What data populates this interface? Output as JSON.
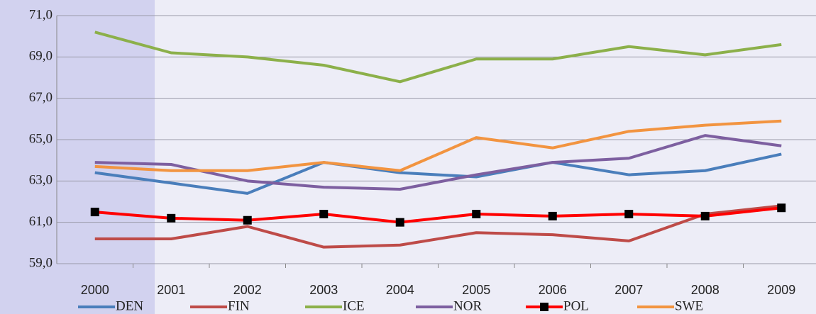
{
  "chart_data": {
    "type": "line",
    "categories": [
      "2000",
      "2001",
      "2002",
      "2003",
      "2004",
      "2005",
      "2006",
      "2007",
      "2008",
      "2009"
    ],
    "series": [
      {
        "name": "DEN",
        "color": "#4a7ebb",
        "values": [
          63.4,
          62.9,
          62.4,
          63.9,
          63.4,
          63.2,
          63.9,
          63.3,
          63.5,
          64.3
        ]
      },
      {
        "name": "FIN",
        "color": "#be4b48",
        "values": [
          60.2,
          60.2,
          60.8,
          59.8,
          59.9,
          60.5,
          60.4,
          60.1,
          61.4,
          61.8
        ]
      },
      {
        "name": "ICE",
        "color": "#8cb04a",
        "values": [
          70.2,
          69.2,
          69.0,
          68.6,
          67.8,
          68.9,
          68.9,
          69.5,
          69.1,
          69.6
        ]
      },
      {
        "name": "NOR",
        "color": "#7d5fa0",
        "values": [
          63.9,
          63.8,
          63.0,
          62.7,
          62.6,
          63.3,
          63.9,
          64.1,
          65.2,
          64.7
        ]
      },
      {
        "name": "POL",
        "color": "#ff0000",
        "marker": "square",
        "marker_color": "#000000",
        "values": [
          61.5,
          61.2,
          61.1,
          61.4,
          61.0,
          61.4,
          61.3,
          61.4,
          61.3,
          61.7
        ]
      },
      {
        "name": "SWE",
        "color": "#f29440",
        "values": [
          63.7,
          63.5,
          63.5,
          63.9,
          63.5,
          65.1,
          64.6,
          65.4,
          65.7,
          65.9
        ]
      }
    ],
    "ylim": [
      59,
      71
    ],
    "yticks": [
      {
        "value": 59,
        "label": "59,0"
      },
      {
        "value": 61,
        "label": "61,0"
      },
      {
        "value": 63,
        "label": "63,0"
      },
      {
        "value": 65,
        "label": "65,0"
      },
      {
        "value": 67,
        "label": "67,0"
      },
      {
        "value": 69,
        "label": "69,0"
      },
      {
        "value": 71,
        "label": "71,0"
      }
    ],
    "grid": true,
    "legend": "bottom"
  }
}
